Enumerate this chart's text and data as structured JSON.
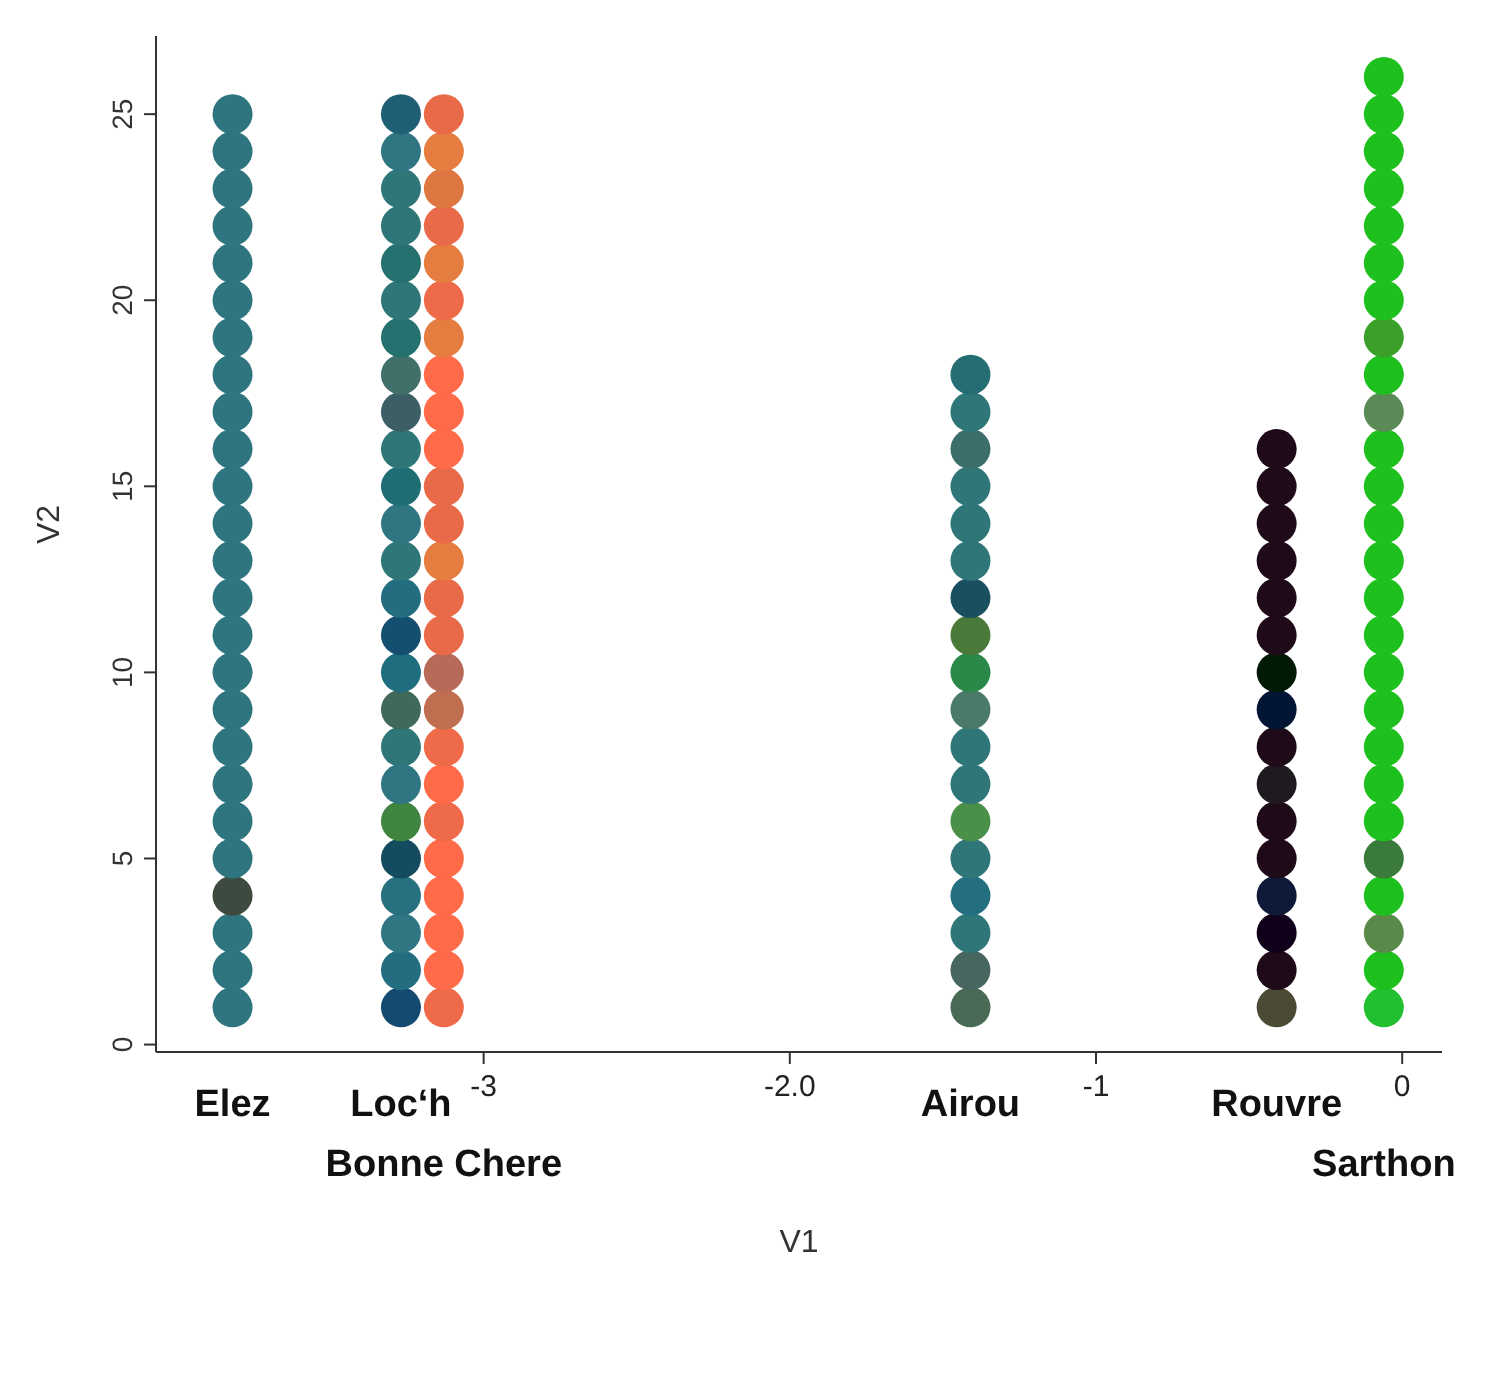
{
  "chart_data": {
    "type": "scatter",
    "xlabel": "V1",
    "ylabel": "V2",
    "marker": "circle",
    "grid": false,
    "legend": false,
    "xlim": [
      -4.07,
      0.13
    ],
    "ylim": [
      -0.2,
      27.1
    ],
    "xticks": [
      -3,
      {
        "value": -2,
        "label": "-2.0"
      },
      -1,
      0
    ],
    "yticks": [
      0,
      5,
      10,
      15,
      20,
      25
    ],
    "series": [
      {
        "x": [
          -3.82,
          -3.82,
          -3.82,
          -3.82,
          -3.82,
          -3.82,
          -3.82,
          -3.82,
          -3.82,
          -3.82,
          -3.82,
          -3.82,
          -3.82,
          -3.82,
          -3.82,
          -3.82,
          -3.82,
          -3.82,
          -3.82,
          -3.82,
          -3.82,
          -3.82,
          -3.82,
          -3.82,
          -3.82
        ],
        "values": [
          1,
          2,
          3,
          4,
          5,
          6,
          7,
          8,
          9,
          10,
          11,
          12,
          13,
          14,
          15,
          16,
          17,
          18,
          19,
          20,
          21,
          22,
          23,
          24,
          25
        ],
        "colors": [
          "#2e7580",
          "#2e7580",
          "#2e7580",
          "#3d4a3f",
          "#2e7580",
          "#2e7580",
          "#2e7580",
          "#2e7580",
          "#2e7580",
          "#2e7580",
          "#2e7580",
          "#2e7580",
          "#2e7580",
          "#2e7580",
          "#2e7580",
          "#2e7580",
          "#2e7580",
          "#2e7580",
          "#2e7580",
          "#2e7580",
          "#2e7580",
          "#2e7580",
          "#2e7580",
          "#2e7580",
          "#2e7580"
        ]
      },
      {
        "x": [
          -3.27,
          -3.27,
          -3.27,
          -3.27,
          -3.27,
          -3.27,
          -3.27,
          -3.27,
          -3.27,
          -3.27,
          -3.27,
          -3.27,
          -3.27,
          -3.27,
          -3.27,
          -3.27,
          -3.27,
          -3.27,
          -3.27,
          -3.27,
          -3.27,
          -3.27,
          -3.27,
          -3.27,
          -3.27
        ],
        "values": [
          1,
          2,
          3,
          4,
          5,
          6,
          7,
          8,
          9,
          10,
          11,
          12,
          13,
          14,
          15,
          16,
          17,
          18,
          19,
          20,
          21,
          22,
          23,
          24,
          25
        ],
        "colors": [
          "#144a70",
          "#236d80",
          "#2f7682",
          "#267080",
          "#144b5e",
          "#3f8540",
          "#2f7682",
          "#2f7678",
          "#40695a",
          "#1f6e80",
          "#154f70",
          "#236d80",
          "#2f7678",
          "#2f7682",
          "#1f6e73",
          "#2f7678",
          "#3c5f66",
          "#41706a",
          "#25716f",
          "#2f7678",
          "#25716f",
          "#2f7678",
          "#2f7678",
          "#2f7682",
          "#1f5f73"
        ]
      },
      {
        "x": [
          -3.13,
          -3.13,
          -3.13,
          -3.13,
          -3.13,
          -3.13,
          -3.13,
          -3.13,
          -3.13,
          -3.13,
          -3.13,
          -3.13,
          -3.13,
          -3.13,
          -3.13,
          -3.13,
          -3.13,
          -3.13,
          -3.13,
          -3.13,
          -3.13,
          -3.13,
          -3.13,
          -3.13,
          -3.13
        ],
        "values": [
          1,
          2,
          3,
          4,
          5,
          6,
          7,
          8,
          9,
          10,
          11,
          12,
          13,
          14,
          15,
          16,
          17,
          18,
          19,
          20,
          21,
          22,
          23,
          24,
          25
        ],
        "colors": [
          "#ee6a48",
          "#ff6a48",
          "#ff6a48",
          "#ff6a48",
          "#ff6a48",
          "#ee6a48",
          "#ff6a48",
          "#ee6a48",
          "#c06e50",
          "#b86a58",
          "#e86a48",
          "#e86a48",
          "#e57d40",
          "#e86a48",
          "#e86a48",
          "#ff6a48",
          "#ff6a48",
          "#ff6a48",
          "#e57d40",
          "#ee6a48",
          "#e57d40",
          "#e86a48",
          "#dd7640",
          "#e57d40",
          "#e86a48"
        ]
      },
      {
        "x": [
          -1.41,
          -1.41,
          -1.41,
          -1.41,
          -1.41,
          -1.41,
          -1.41,
          -1.41,
          -1.41,
          -1.41,
          -1.41,
          -1.41,
          -1.41,
          -1.41,
          -1.41,
          -1.41,
          -1.41,
          -1.41
        ],
        "values": [
          1,
          2,
          3,
          4,
          5,
          6,
          7,
          8,
          9,
          10,
          11,
          12,
          13,
          14,
          15,
          16,
          17,
          18
        ],
        "colors": [
          "#4a6a55",
          "#46665f",
          "#2f7678",
          "#236f80",
          "#2f7678",
          "#4a9048",
          "#2f7678",
          "#2f7678",
          "#4a7a6a",
          "#2a8848",
          "#4a7a3a",
          "#1a4f60",
          "#2f7678",
          "#2f7678",
          "#2f7678",
          "#3b6e6a",
          "#2f7678",
          "#236d73"
        ]
      },
      {
        "x": [
          -0.41,
          -0.41,
          -0.41,
          -0.41,
          -0.41,
          -0.41,
          -0.41,
          -0.41,
          -0.41,
          -0.41,
          -0.41,
          -0.41,
          -0.41,
          -0.41,
          -0.41,
          -0.41
        ],
        "values": [
          1,
          2,
          3,
          4,
          5,
          6,
          7,
          8,
          9,
          10,
          11,
          12,
          13,
          14,
          15,
          16
        ],
        "colors": [
          "#4a4a35",
          "#1e0a18",
          "#10001a",
          "#0f1a38",
          "#1e0a18",
          "#1e0a18",
          "#1e1a20",
          "#1e0a18",
          "#021535",
          "#021a05",
          "#1e0a18",
          "#1e0a18",
          "#1e0a18",
          "#1e0a18",
          "#1e0a18",
          "#1e0a18"
        ]
      },
      {
        "x": [
          -0.06,
          -0.06,
          -0.06,
          -0.06,
          -0.06,
          -0.06,
          -0.06,
          -0.06,
          -0.06,
          -0.06,
          -0.06,
          -0.06,
          -0.06,
          -0.06,
          -0.06,
          -0.06,
          -0.06,
          -0.06,
          -0.06,
          -0.06,
          -0.06,
          -0.06,
          -0.06,
          -0.06,
          -0.06,
          -0.06
        ],
        "values": [
          1,
          2,
          3,
          4,
          5,
          6,
          7,
          8,
          9,
          10,
          11,
          12,
          13,
          14,
          15,
          16,
          17,
          18,
          19,
          20,
          21,
          22,
          23,
          24,
          25,
          26
        ],
        "colors": [
          "#22c030",
          "#1ec01e",
          "#5a8a4a",
          "#1ec01e",
          "#3a7a3a",
          "#1ec01e",
          "#1ec01e",
          "#1ec01e",
          "#1ec01e",
          "#1ec01e",
          "#1ec01e",
          "#1ec01e",
          "#1ec01e",
          "#1ec01e",
          "#1ec01e",
          "#1ec01e",
          "#5a8a55",
          "#1ec01e",
          "#3aa02a",
          "#1ec01e",
          "#1ec01e",
          "#1ec01e",
          "#1ec01e",
          "#1ec01e",
          "#1ec01e",
          "#1ec01e"
        ]
      }
    ],
    "annotations": [
      "Elez",
      "Loc‘h",
      "Bonne Chere",
      "Airou",
      "Rouvre",
      "Sarthon"
    ]
  }
}
